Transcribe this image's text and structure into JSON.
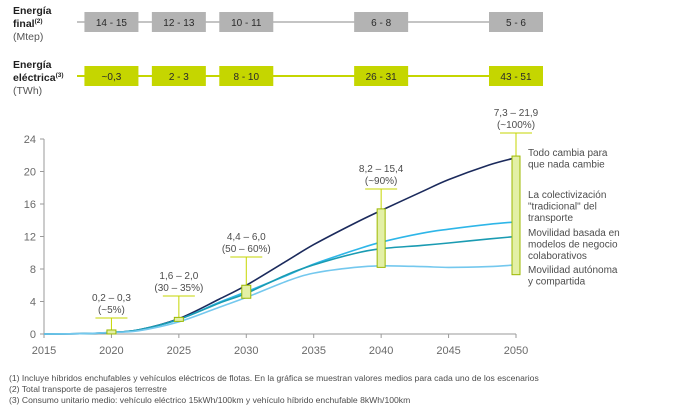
{
  "header": {
    "energia_final": {
      "label_line1": "Energía",
      "label_line2": "final",
      "label_sup": "(2)",
      "unit": "(Mtep)"
    },
    "energia_electrica": {
      "label_line1": "Energía",
      "label_line2": "eléctrica",
      "label_sup": "(3)",
      "unit": "(TWh)"
    }
  },
  "colors": {
    "gray_box": "#b3b3b3",
    "green_box": "#c5d600",
    "axis": "#9a9a9a",
    "series_todo_cambia": "#1b2a5c",
    "series_colectivizacion": "#2eb6e8",
    "series_movilidad_negocio": "#1a9bb2",
    "series_movilidad_autonoma": "#74c8ee",
    "range_bar_fill": "#e3f0a6",
    "range_bar_stroke": "#9cb800"
  },
  "chart_data": {
    "type": "line",
    "title": "",
    "xlabel": "",
    "ylabel": "",
    "xlim": [
      2015,
      2050
    ],
    "ylim": [
      0,
      24
    ],
    "xticks": [
      2015,
      2020,
      2025,
      2030,
      2035,
      2040,
      2045,
      2050
    ],
    "yticks": [
      0,
      4,
      8,
      12,
      16,
      20,
      24
    ],
    "energia_final_row": [
      {
        "year": 2020,
        "label": "14 - 15"
      },
      {
        "year": 2025,
        "label": "12 - 13"
      },
      {
        "year": 2030,
        "label": "10 - 11"
      },
      {
        "year": 2040,
        "label": "6 - 8"
      },
      {
        "year": 2050,
        "label": "5 - 6"
      }
    ],
    "energia_electrica_row": [
      {
        "year": 2020,
        "label": "~0,3"
      },
      {
        "year": 2025,
        "label": "2 - 3"
      },
      {
        "year": 2030,
        "label": "8 - 10"
      },
      {
        "year": 2040,
        "label": "26 - 31"
      },
      {
        "year": 2050,
        "label": "43 - 51"
      }
    ],
    "series": [
      {
        "name": "Todo cambia para que nada cambie",
        "legend_lines": [
          "Todo cambia para",
          "que nada cambie"
        ],
        "color": "#1b2a5c",
        "x": [
          2015,
          2018,
          2020,
          2022,
          2025,
          2028,
          2030,
          2033,
          2035,
          2038,
          2040,
          2043,
          2045,
          2048,
          2050
        ],
        "y": [
          0,
          0.05,
          0.2,
          0.5,
          1.9,
          4.3,
          6.0,
          9.0,
          11.0,
          13.6,
          15.2,
          17.5,
          19.0,
          20.8,
          21.7
        ]
      },
      {
        "name": "La colectivización \"tradicional\" del transporte",
        "legend_lines": [
          "La colectivización",
          "\"tradicional\" del",
          "transporte"
        ],
        "color": "#2eb6e8",
        "x": [
          2015,
          2018,
          2020,
          2022,
          2025,
          2028,
          2030,
          2033,
          2035,
          2038,
          2040,
          2043,
          2045,
          2048,
          2050
        ],
        "y": [
          0,
          0.05,
          0.2,
          0.5,
          1.8,
          3.9,
          5.2,
          7.2,
          8.6,
          10.3,
          11.3,
          12.4,
          12.9,
          13.5,
          13.8
        ]
      },
      {
        "name": "Movilidad basada en modelos de negocio colaborativos",
        "legend_lines": [
          "Movilidad basada en",
          "modelos de negocio",
          "colaborativos"
        ],
        "color": "#1a9bb2",
        "x": [
          2015,
          2018,
          2020,
          2022,
          2025,
          2028,
          2030,
          2033,
          2035,
          2038,
          2040,
          2043,
          2045,
          2048,
          2050
        ],
        "y": [
          0,
          0.05,
          0.2,
          0.5,
          1.8,
          3.8,
          5.0,
          7.3,
          8.5,
          9.9,
          10.5,
          10.9,
          11.2,
          11.7,
          12.0
        ]
      },
      {
        "name": "Movilidad autónoma y compartida",
        "legend_lines": [
          "Movilidad autónoma",
          "y compartida"
        ],
        "color": "#74c8ee",
        "x": [
          2015,
          2018,
          2020,
          2022,
          2025,
          2028,
          2030,
          2033,
          2035,
          2038,
          2040,
          2043,
          2045,
          2048,
          2050
        ],
        "y": [
          0,
          0.05,
          0.2,
          0.4,
          1.5,
          3.3,
          4.5,
          6.5,
          7.5,
          8.2,
          8.4,
          8.3,
          8.2,
          8.3,
          8.5
        ]
      }
    ],
    "ranges": [
      {
        "year": 2020,
        "low": 0.2,
        "high": 0.3,
        "label_line1": "0,2 – 0,3",
        "label_line2": "(~5%)"
      },
      {
        "year": 2025,
        "low": 1.6,
        "high": 2.0,
        "label_line1": "1,6 – 2,0",
        "label_line2": "(30 – 35%)"
      },
      {
        "year": 2030,
        "low": 4.4,
        "high": 6.0,
        "label_line1": "4,4 – 6,0",
        "label_line2": "(50 – 60%)"
      },
      {
        "year": 2040,
        "low": 8.2,
        "high": 15.4,
        "label_line1": "8,2 – 15,4",
        "label_line2": "(~90%)"
      },
      {
        "year": 2050,
        "low": 7.3,
        "high": 21.9,
        "label_line1": "7,3 – 21,9",
        "label_line2": "(~100%)"
      }
    ]
  },
  "footnotes": [
    "(1)  Incluye híbridos enchufables y vehículos eléctricos de flotas. En la gráfica se muestran valores medios para cada uno de los escenarios",
    "(2)  Total transporte de pasajeros terrestre",
    "(3)  Consumo unitario medio: vehículo eléctrico 15kWh/100km y vehículo híbrido enchufable 8kWh/100km"
  ]
}
